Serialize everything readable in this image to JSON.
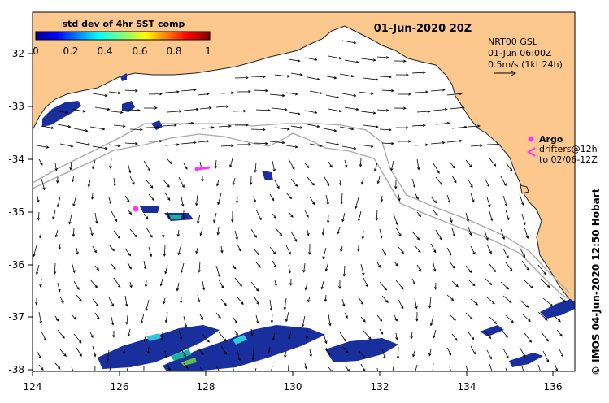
{
  "map": {
    "title": "01-Jun-2020 20Z",
    "colorbar_title": "std dev of 4hr SST comp",
    "colorbar_ticks": [
      "0",
      "0.2",
      "0.4",
      "0.6",
      "0.8",
      "1"
    ],
    "colorbar_range": [
      0,
      1
    ],
    "current_info": {
      "line1": "NRT00 GSL",
      "line2": "01-Jun 06:00Z",
      "line3": "0.5m/s (1kt 24h)"
    },
    "argo_label": "Argo",
    "drifters_line1": "drifters@12h",
    "drifters_line2": "to 02/06-12Z",
    "credit": "© IMOS 04-Jun-2020 12:50 Hobart",
    "x_ticks": [
      "124",
      "126",
      "128",
      "130",
      "132",
      "134",
      "136"
    ],
    "y_ticks": [
      "-32",
      "-33",
      "-34",
      "-35",
      "-36",
      "-37",
      "-38"
    ],
    "lon_range": [
      124,
      136.5
    ],
    "lat_range": [
      -38.1,
      -31.3
    ],
    "colors": {
      "land": "#fdc88e",
      "coast": "#222222",
      "isobath": "#a8a8a8",
      "argo": "#ff33ff",
      "vector": "#000000",
      "patch": "#1a2f9e"
    }
  }
}
